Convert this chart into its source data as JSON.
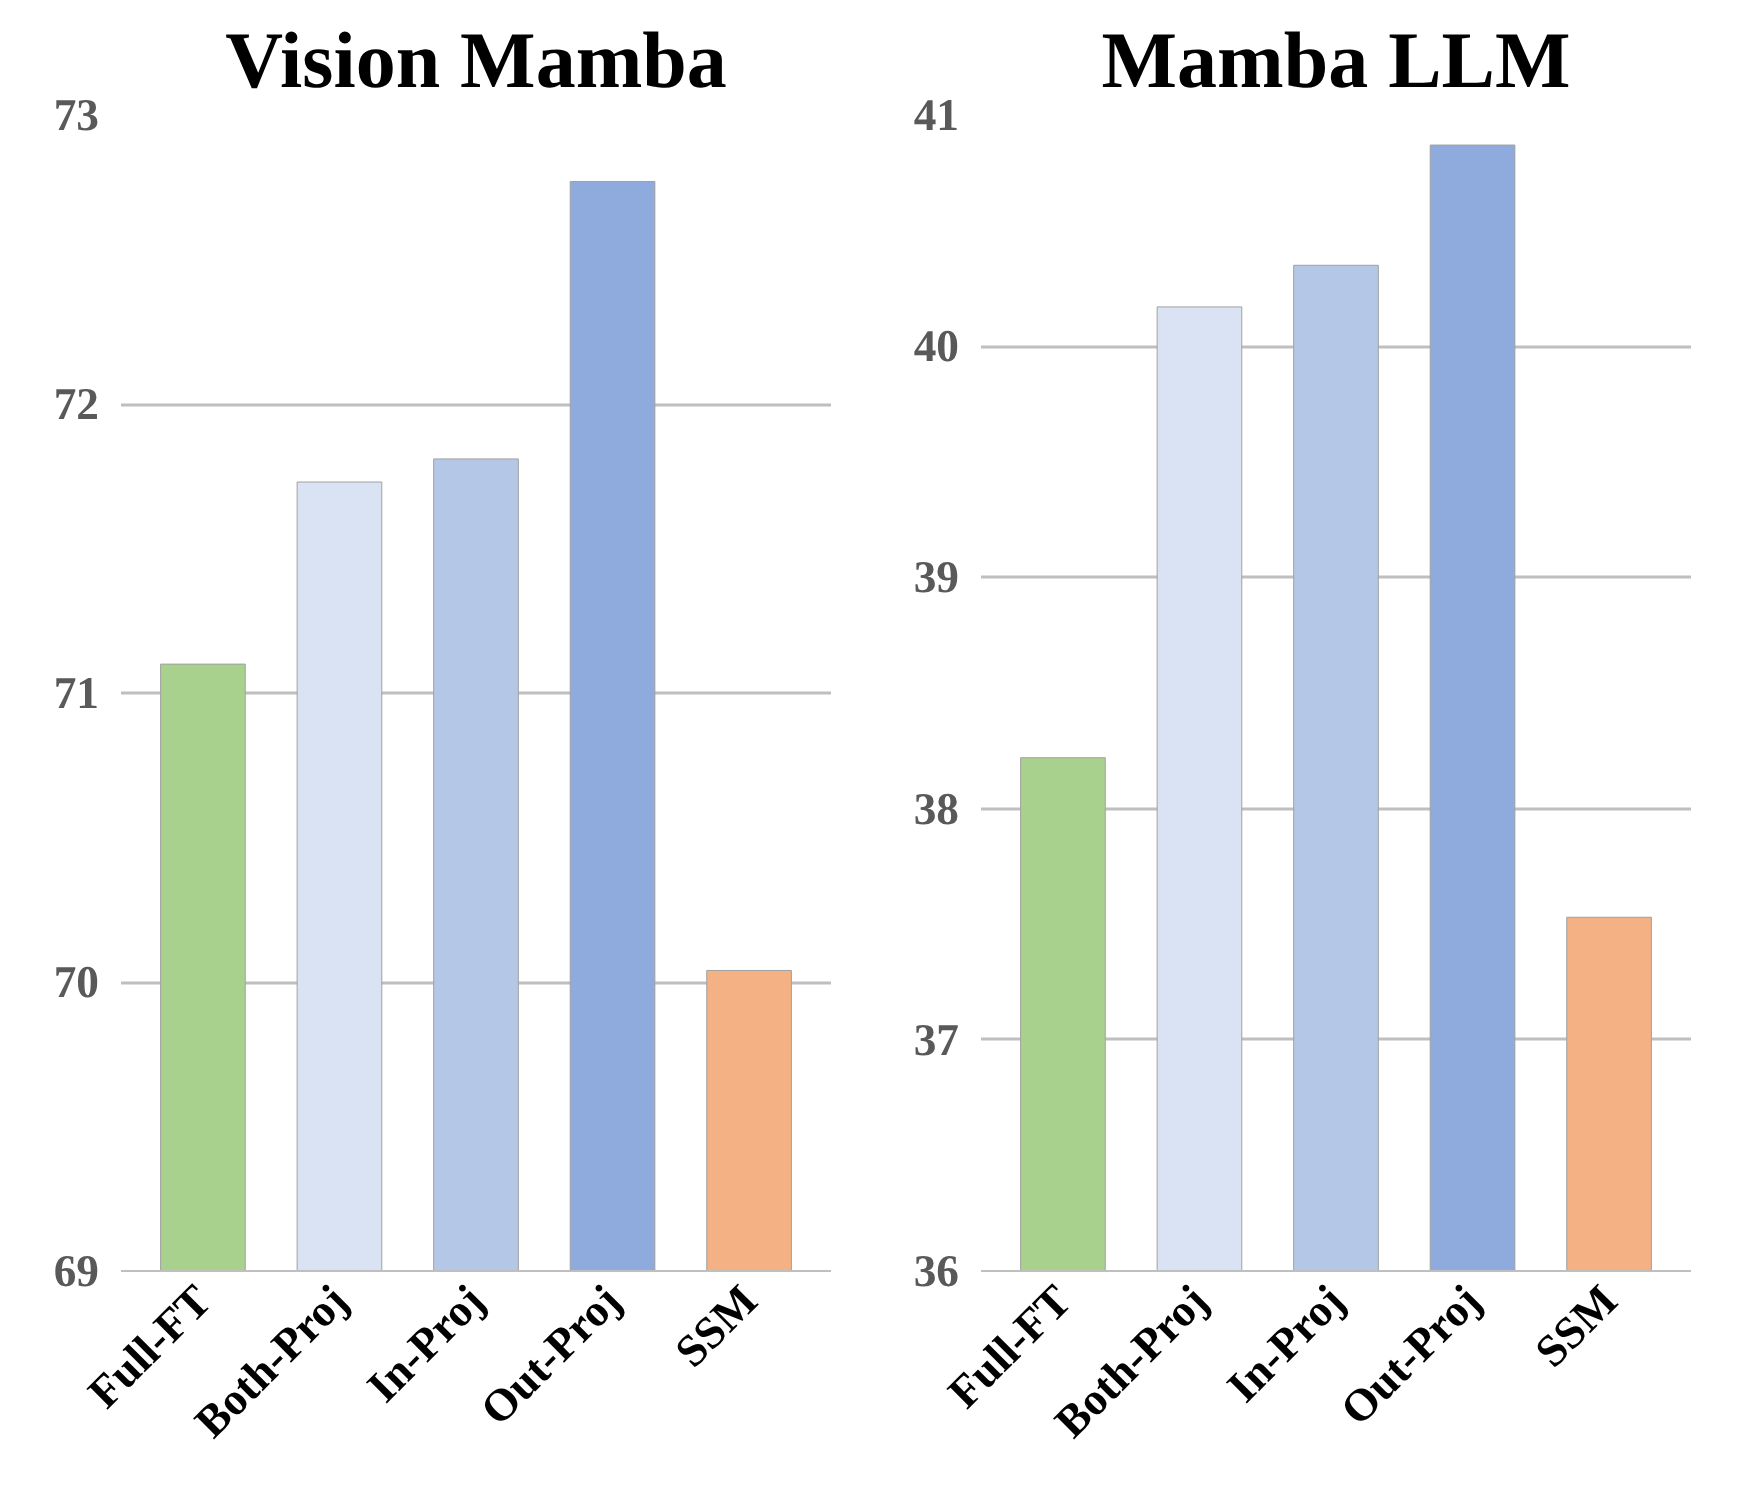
{
  "chart_data": [
    {
      "type": "bar",
      "title": "Vision Mamba",
      "categories": [
        "Full-FT",
        "Both-Proj",
        "In-Proj",
        "Out-Proj",
        "SSM"
      ],
      "values": [
        71.1,
        71.73,
        71.81,
        72.77,
        70.04
      ],
      "colors": [
        "#a9d18e",
        "#dae3f3",
        "#b4c7e7",
        "#8faadc",
        "#f4b183"
      ],
      "ylim": [
        69,
        73
      ],
      "yticks": [
        69,
        70,
        71,
        72,
        73
      ],
      "grid": "y"
    },
    {
      "type": "bar",
      "title": "Mamba LLM",
      "categories": [
        "Full-FT",
        "Both-Proj",
        "In-Proj",
        "Out-Proj",
        "SSM"
      ],
      "values": [
        38.22,
        40.17,
        40.35,
        40.87,
        37.53
      ],
      "colors": [
        "#a9d18e",
        "#dae3f3",
        "#b4c7e7",
        "#8faadc",
        "#f4b183"
      ],
      "ylim": [
        36,
        41
      ],
      "yticks": [
        36,
        37,
        38,
        39,
        40,
        41
      ],
      "grid": "y"
    }
  ]
}
